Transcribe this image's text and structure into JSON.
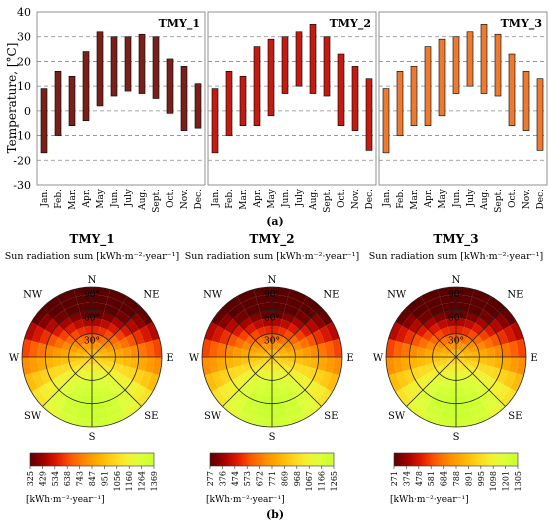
{
  "chart_data": [
    {
      "type": "bar",
      "subtype": "range",
      "panel_label": "(a)",
      "ylabel": "Temperature, [°C]",
      "ylim": [
        -30,
        40
      ],
      "yticks": [
        "40",
        "30",
        "20",
        "10",
        "0",
        "-10",
        "-20",
        "-30"
      ],
      "dashed_grid_at": [
        30,
        20,
        10,
        0,
        -10,
        -20
      ],
      "categories": [
        "Jan.",
        "Feb.",
        "Mar.",
        "Apr.",
        "May",
        "Jun.",
        "July",
        "Aug.",
        "Sept.",
        "Oct.",
        "Nov.",
        "Dec."
      ],
      "panels": [
        {
          "title": "TMY_1",
          "color": "#7a1f1a",
          "min": [
            -17,
            -10,
            -6,
            -4,
            2,
            6,
            8,
            7,
            5,
            -1,
            -8,
            -7
          ],
          "max": [
            9,
            16,
            14,
            24,
            32,
            30,
            30,
            31,
            30,
            21,
            18,
            11
          ]
        },
        {
          "title": "TMY_2",
          "color": "#c41a12",
          "min": [
            -17,
            -10,
            -6,
            -6,
            -2,
            7,
            10,
            7,
            6,
            -6,
            -8,
            -16
          ],
          "max": [
            9,
            16,
            14,
            26,
            29,
            30,
            32,
            35,
            30,
            23,
            18,
            13
          ]
        },
        {
          "title": "TMY_3",
          "color": "#ee7a32",
          "min": [
            -17,
            -10,
            -6,
            -6,
            -2,
            7,
            10,
            7,
            6,
            -6,
            -8,
            -16
          ],
          "max": [
            9,
            16,
            18,
            26,
            29,
            30,
            32,
            35,
            31,
            23,
            16,
            13
          ]
        }
      ]
    },
    {
      "type": "heatmap",
      "subtype": "polar",
      "panel_label": "(b)",
      "subtitle": "Sun radiation sum [kWh·m⁻²·year⁻¹]",
      "unit_label": "[kWh·m⁻²·year⁻¹]",
      "directions": [
        "N",
        "NE",
        "E",
        "SE",
        "S",
        "SW",
        "W",
        "NW"
      ],
      "ring_labels": [
        "30°",
        "60°",
        "90°"
      ],
      "panels": [
        {
          "title": "TMY_1",
          "colorbar_ticks": [
            "325",
            "429",
            "534",
            "638",
            "743",
            "847",
            "951",
            "1056",
            "1160",
            "1264",
            "1369"
          ]
        },
        {
          "title": "TMY_2",
          "colorbar_ticks": [
            "277",
            "376",
            "474",
            "573",
            "672",
            "771",
            "869",
            "968",
            "1067",
            "1166",
            "1265"
          ]
        },
        {
          "title": "TMY_3",
          "colorbar_ticks": [
            "271",
            "374",
            "478",
            "581",
            "684",
            "788",
            "891",
            "995",
            "1098",
            "1201",
            "1305"
          ]
        }
      ]
    }
  ]
}
